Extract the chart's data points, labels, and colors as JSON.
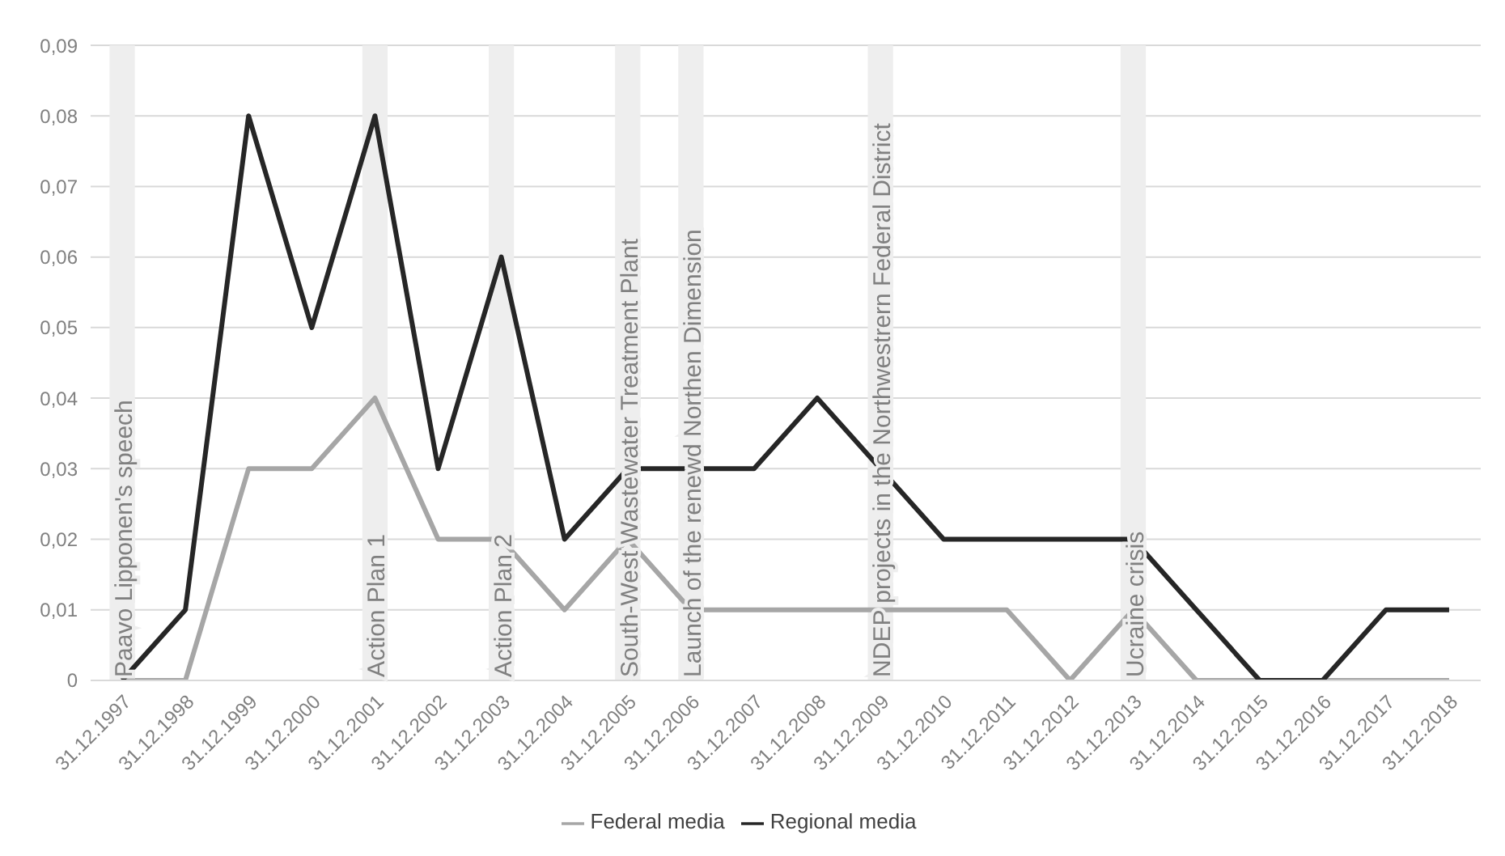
{
  "chart_data": {
    "type": "line",
    "categories": [
      "31.12.1997",
      "31.12.1998",
      "31.12.1999",
      "31.12.2000",
      "31.12.2001",
      "31.12.2002",
      "31.12.2003",
      "31.12.2004",
      "31.12.2005",
      "31.12.2006",
      "31.12.2007",
      "31.12.2008",
      "31.12.2009",
      "31.12.2010",
      "31.12.2011",
      "31.12.2012",
      "31.12.2013",
      "31.12.2014",
      "31.12.2015",
      "31.12.2016",
      "31.12.2017",
      "31.12.2018"
    ],
    "series": [
      {
        "name": "Federal media",
        "color": "#a6a6a6",
        "values": [
          0,
          0,
          0.03,
          0.03,
          0.04,
          0.02,
          0.02,
          0.01,
          0.02,
          0.01,
          0.01,
          0.01,
          0.01,
          0.01,
          0.01,
          0,
          0.01,
          0,
          0,
          0,
          0,
          0
        ]
      },
      {
        "name": "Regional  media",
        "color": "#262626",
        "values": [
          0,
          0.01,
          0.08,
          0.05,
          0.08,
          0.03,
          0.06,
          0.02,
          0.03,
          0.03,
          0.03,
          0.04,
          0.03,
          0.02,
          0.02,
          0.02,
          0.02,
          0.01,
          0,
          0,
          0.01,
          0.01
        ]
      }
    ],
    "ylim": [
      0,
      0.09
    ],
    "yticks": [
      {
        "value": 0,
        "label": "0"
      },
      {
        "value": 0.01,
        "label": "0,01"
      },
      {
        "value": 0.02,
        "label": "0,02"
      },
      {
        "value": 0.03,
        "label": "0,03"
      },
      {
        "value": 0.04,
        "label": "0,04"
      },
      {
        "value": 0.05,
        "label": "0,05"
      },
      {
        "value": 0.06,
        "label": "0,06"
      },
      {
        "value": 0.07,
        "label": "0,07"
      },
      {
        "value": 0.08,
        "label": "0,08"
      },
      {
        "value": 0.09,
        "label": "0,09"
      }
    ],
    "bands": [
      {
        "axis": "x",
        "from": "31.12.1997",
        "to": "31.12.1997",
        "label": "Paavo Lipponen's speech",
        "color": "#eeeeee"
      },
      {
        "axis": "x",
        "from": "31.12.2001",
        "to": "31.12.2001",
        "label": "Action Plan 1",
        "color": "#eeeeee"
      },
      {
        "axis": "x",
        "from": "31.12.2003",
        "to": "31.12.2003",
        "label": "Action Plan 2",
        "color": "#eeeeee"
      },
      {
        "axis": "x",
        "from": "31.12.2005",
        "to": "31.12.2005",
        "label": "South-West Wastewater Treatment Plant",
        "color": "#eeeeee"
      },
      {
        "axis": "x",
        "from": "31.12.2006",
        "to": "31.12.2006",
        "label": "Launch of the renewd Northen Dimension",
        "color": "#eeeeee"
      },
      {
        "axis": "x",
        "from": "31.12.2009",
        "to": "31.12.2009",
        "label": "NDEP projects in the Northwestrern Federal District",
        "color": "#eeeeee"
      },
      {
        "axis": "x",
        "from": "31.12.2013",
        "to": "31.12.2013",
        "label": "Ucraine crisis",
        "color": "#eeeeee"
      }
    ],
    "grid": "y",
    "legend": "bottom"
  }
}
